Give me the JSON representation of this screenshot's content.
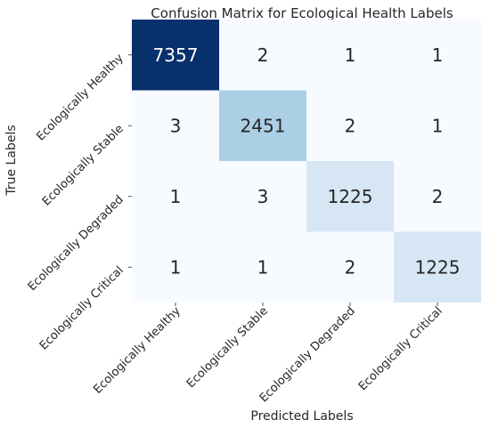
{
  "chart_data": {
    "type": "heatmap",
    "title": "Confusion Matrix for Ecological Health Labels",
    "xlabel": "Predicted Labels",
    "ylabel": "True Labels",
    "x_categories": [
      "Ecologically Healthy",
      "Ecologically Stable",
      "Ecologically Degraded",
      "Ecologically Critical"
    ],
    "y_categories": [
      "Ecologically Healthy",
      "Ecologically Stable",
      "Ecologically Degraded",
      "Ecologically Critical"
    ],
    "values": [
      [
        7357,
        2,
        1,
        1
      ],
      [
        3,
        2451,
        2,
        1
      ],
      [
        1,
        3,
        1225,
        2
      ],
      [
        1,
        1,
        2,
        1225
      ]
    ],
    "colormap": "Blues",
    "colorbar": false,
    "low_color": "#f7fbff",
    "high_color": "#08306b"
  }
}
